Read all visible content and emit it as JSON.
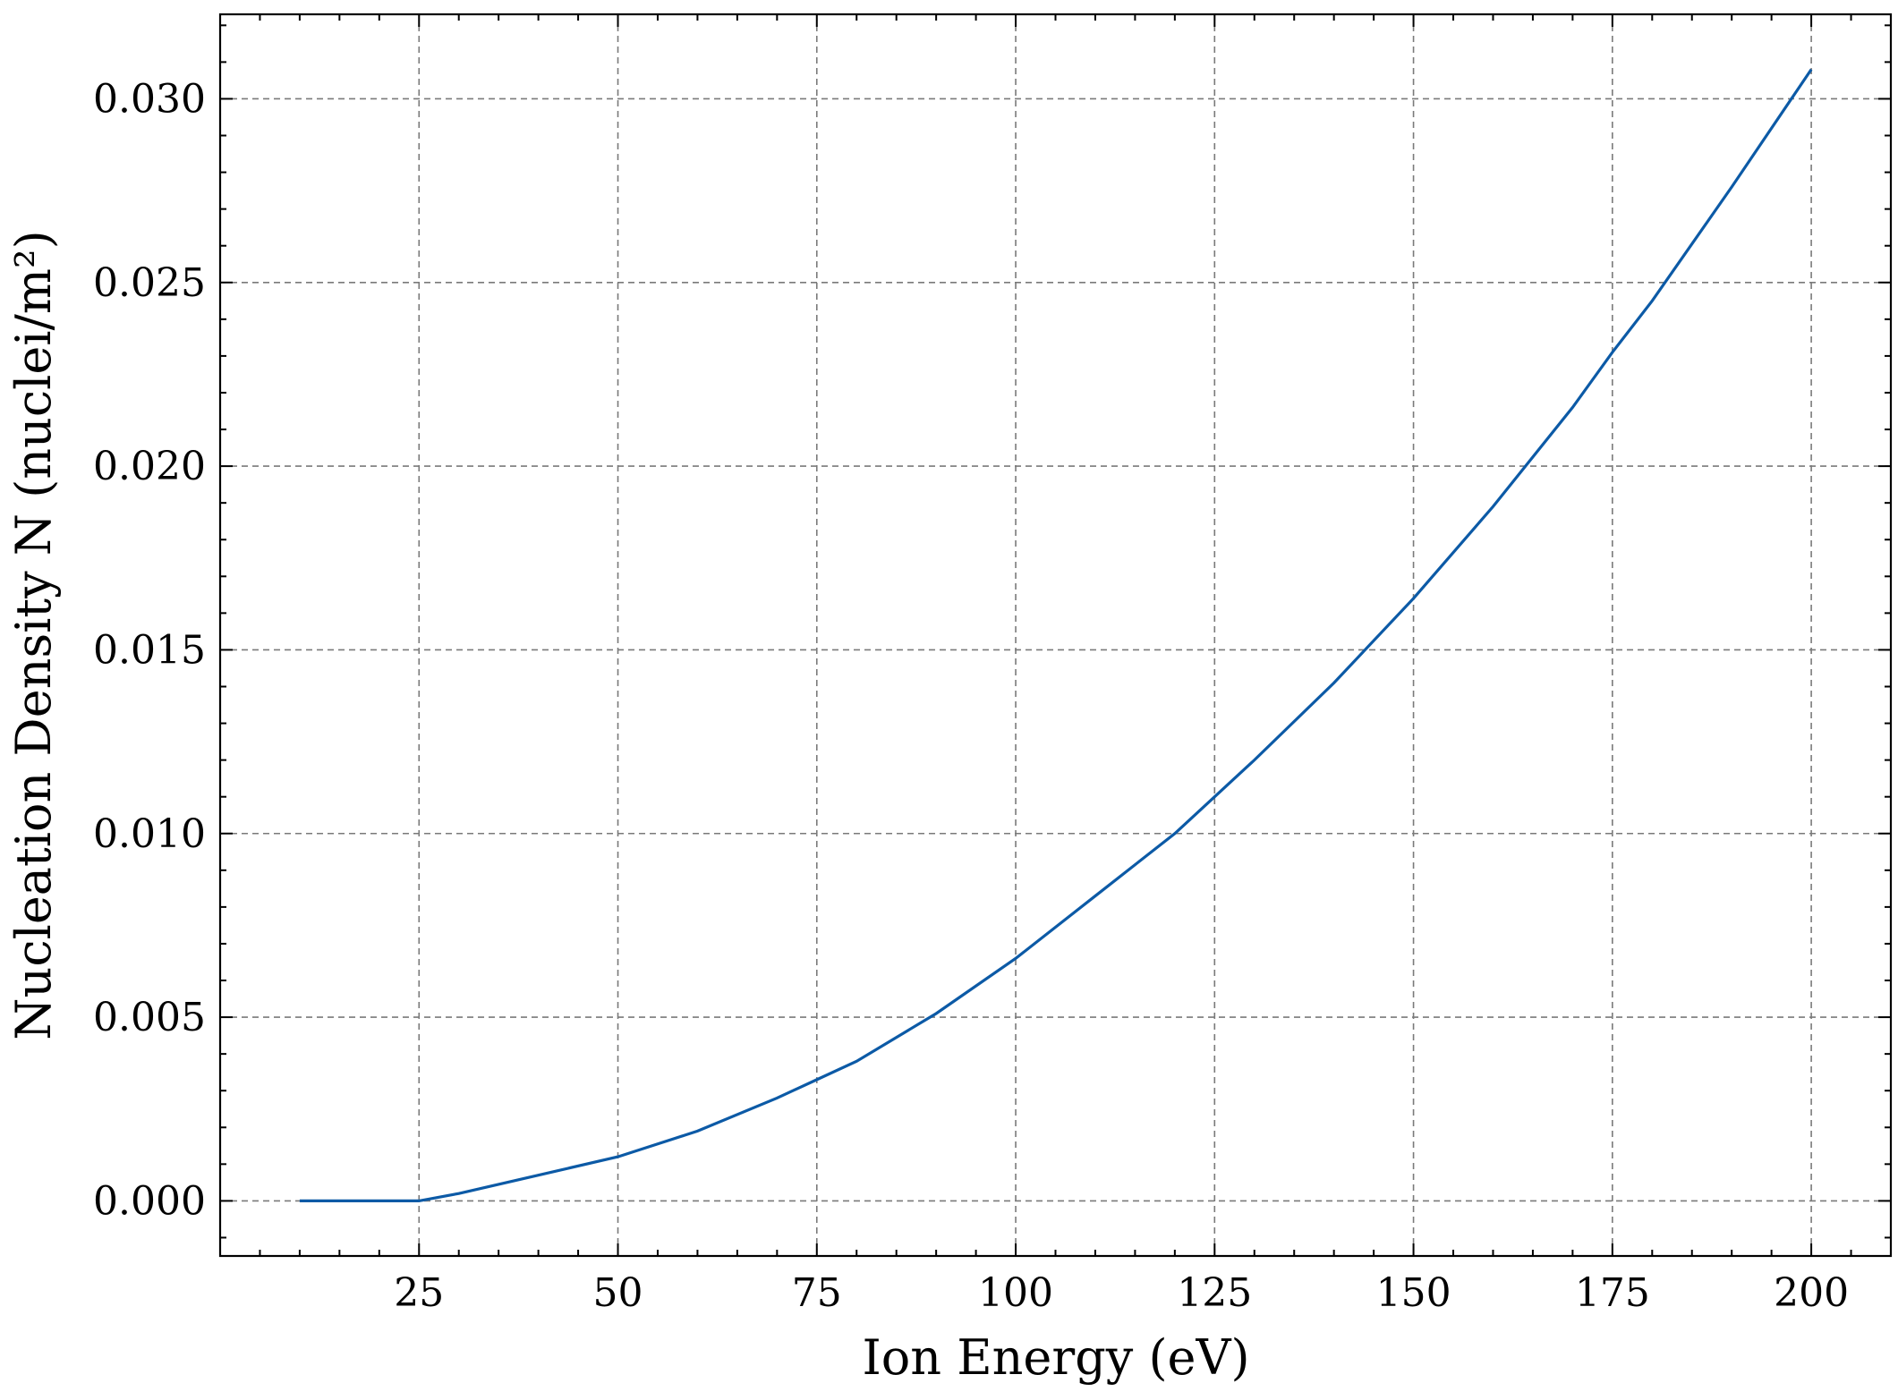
{
  "chart_data": {
    "type": "line",
    "xlabel": "Ion Energy (eV)",
    "ylabel": "Nucleation Density N (nuclei/m²)",
    "xlim": [
      0,
      210
    ],
    "ylim": [
      -0.0015,
      0.0323
    ],
    "x_ticks": [
      25,
      50,
      75,
      100,
      125,
      150,
      175,
      200
    ],
    "x_tick_labels": [
      "25",
      "50",
      "75",
      "100",
      "125",
      "150",
      "175",
      "200"
    ],
    "y_ticks": [
      0.0,
      0.005,
      0.01,
      0.015,
      0.02,
      0.025,
      0.03
    ],
    "y_tick_labels": [
      "0.000",
      "0.005",
      "0.010",
      "0.015",
      "0.020",
      "0.025",
      "0.030"
    ],
    "grid": true,
    "series": [
      {
        "color": "#0c5aa6",
        "x": [
          10,
          15,
          20,
          25,
          30,
          40,
          50,
          60,
          70,
          75,
          80,
          90,
          100,
          110,
          120,
          125,
          130,
          140,
          150,
          160,
          170,
          175,
          180,
          190,
          200
        ],
        "values": [
          0.0,
          0.0,
          0.0,
          0.0,
          0.0002,
          0.0007,
          0.0012,
          0.0019,
          0.0028,
          0.0033,
          0.0038,
          0.0051,
          0.0066,
          0.0083,
          0.01,
          0.011,
          0.012,
          0.0141,
          0.0164,
          0.0189,
          0.0216,
          0.0231,
          0.0245,
          0.0276,
          0.0308
        ]
      }
    ]
  }
}
